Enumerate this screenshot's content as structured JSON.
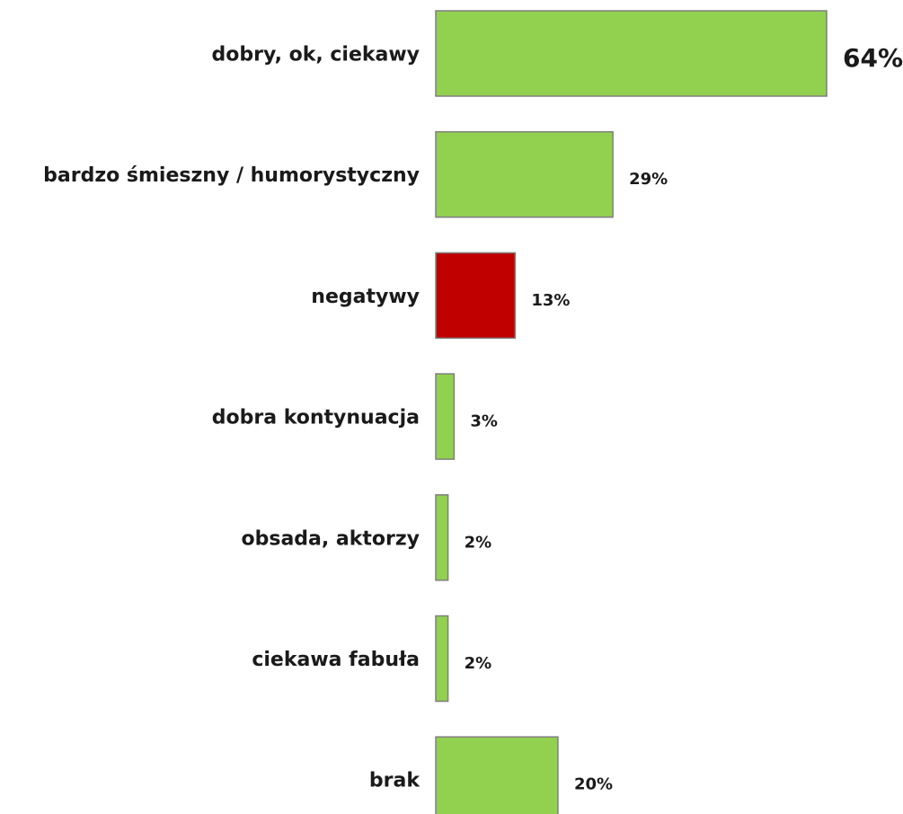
{
  "chart_data": {
    "type": "bar",
    "orientation": "horizontal",
    "categories": [
      "dobry, ok, ciekawy",
      "bardzo śmieszny / humorystyczny",
      "negatywy",
      "dobra kontynuacja",
      "obsada, aktorzy",
      "ciekawa fabuła",
      "brak"
    ],
    "values": [
      64,
      29,
      13,
      3,
      2,
      2,
      20
    ],
    "value_labels": [
      "64%",
      "29%",
      "13%",
      "3%",
      "2%",
      "2%",
      "20%"
    ],
    "unit": "%",
    "bar_colors": [
      "#92d050",
      "#92d050",
      "#c00000",
      "#92d050",
      "#92d050",
      "#92d050",
      "#92d050"
    ],
    "bar_outline_color": "#7f7f7f",
    "xlim": [
      0,
      64
    ],
    "grid": false,
    "legend": "none",
    "title": "",
    "xlabel": "",
    "ylabel": ""
  }
}
